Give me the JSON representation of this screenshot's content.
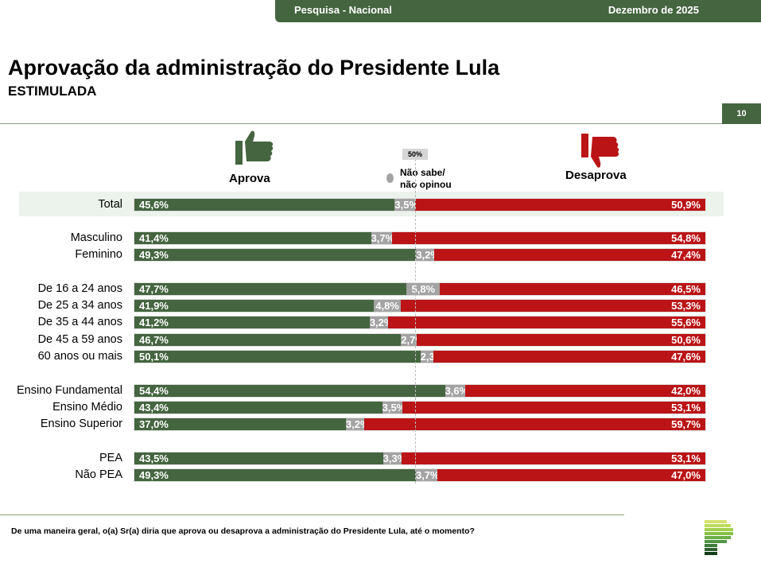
{
  "header": {
    "left": "Pesquisa - Nacional",
    "right": "Dezembro de 2025",
    "page": "10"
  },
  "title": "Aprovação da administração do Presidente Lula",
  "subtitle": "ESTIMULADA",
  "question": "De uma maneira geral, o(a) Sr(a) diria que aprova ou desaprova a administração do Presidente Lula, até o momento?",
  "colors": {
    "aprova": "#44653f",
    "nao_sabe": "#a3a3a3",
    "desaprova": "#bb1416"
  },
  "chart_data": {
    "type": "bar",
    "orientation": "horizontal",
    "stacked": true,
    "reference_line": {
      "value": 50,
      "label": "50%"
    },
    "legend": [
      "Aprova",
      "Não sabe/ não opinou",
      "Desaprova"
    ],
    "categories": [
      "Total",
      "Masculino",
      "Feminino",
      "De 16 a 24 anos",
      "De 25 a 34 anos",
      "De 35 a 44 anos",
      "De 45 a 59 anos",
      "60 anos ou mais",
      "Ensino Fundamental",
      "Ensino Médio",
      "Ensino Superior",
      "PEA",
      "Não PEA"
    ],
    "series": [
      {
        "name": "Aprova",
        "values": [
          45.6,
          41.4,
          49.3,
          47.7,
          41.9,
          41.2,
          46.7,
          50.1,
          54.4,
          43.4,
          37.0,
          43.5,
          49.3
        ]
      },
      {
        "name": "Não sabe/ não opinou",
        "values": [
          3.5,
          3.7,
          3.2,
          5.8,
          4.8,
          3.2,
          2.7,
          2.3,
          3.6,
          3.5,
          3.2,
          3.3,
          3.7
        ]
      },
      {
        "name": "Desaprova",
        "values": [
          50.9,
          54.8,
          47.4,
          46.5,
          53.3,
          55.6,
          50.6,
          47.6,
          42.0,
          53.1,
          59.7,
          53.1,
          47.0
        ]
      }
    ]
  }
}
